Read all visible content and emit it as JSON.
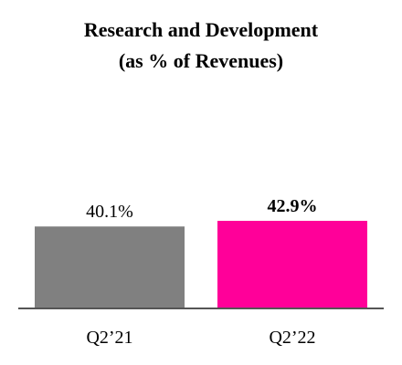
{
  "chart_data": {
    "type": "bar",
    "title_lines": [
      "Research and Development",
      "(as % of Revenues)"
    ],
    "categories": [
      "Q2’21",
      "Q2’22"
    ],
    "values": [
      40.1,
      42.9
    ],
    "value_labels": [
      "40.1%",
      "42.9%"
    ],
    "emphasized": [
      false,
      true
    ],
    "colors": [
      "#808080",
      "#ff0099"
    ],
    "axis_color": "#555555",
    "ylim": [
      0,
      42.9
    ],
    "grid": false,
    "legend": "none"
  }
}
